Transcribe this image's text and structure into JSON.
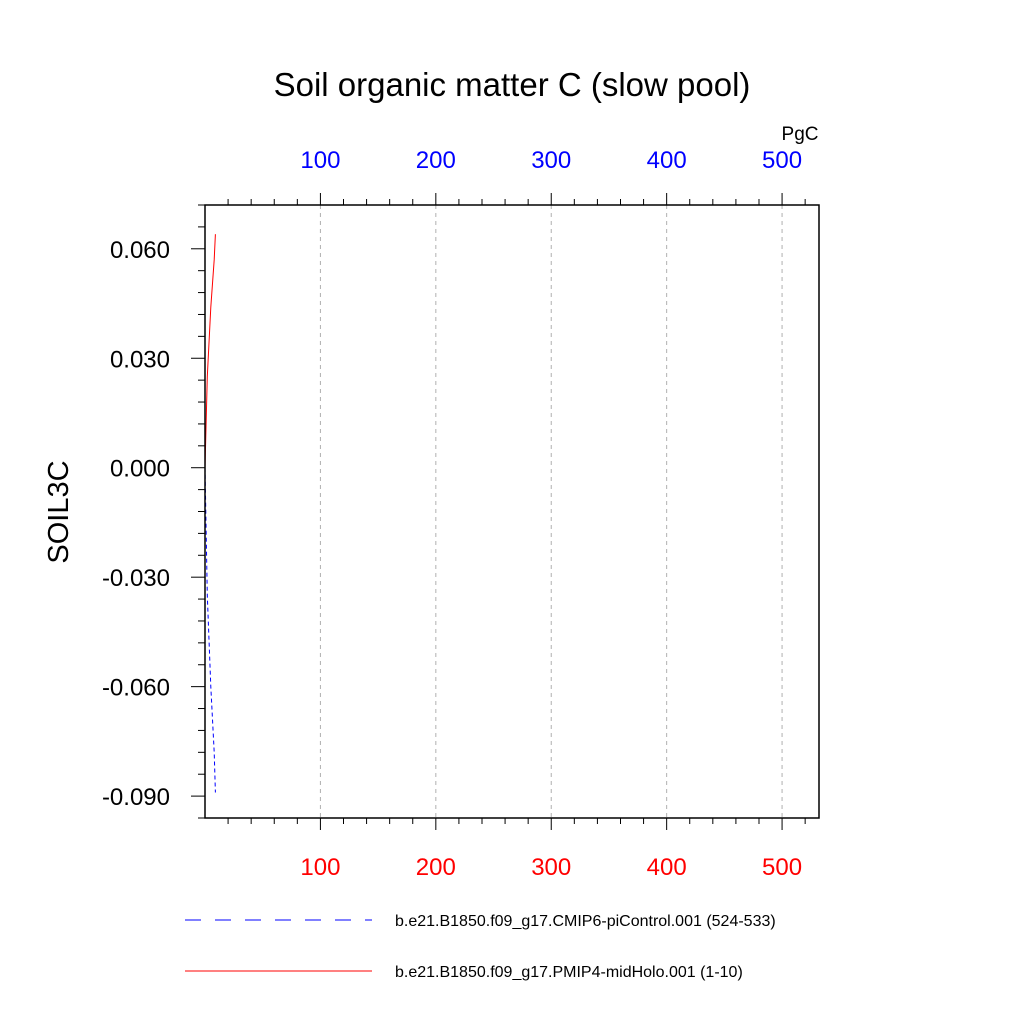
{
  "chart_data": {
    "type": "line",
    "title": "Soil organic matter C (slow pool)",
    "ylabel": "SOIL3C",
    "x_axis_units": "PgC",
    "ylim": [
      -0.096,
      0.072
    ],
    "xlim": [
      0,
      532
    ],
    "y_ticks": [
      "0.060",
      "0.030",
      "0.000",
      "-0.030",
      "-0.060",
      "-0.090"
    ],
    "y_tick_values": [
      0.06,
      0.03,
      0.0,
      -0.03,
      -0.06,
      -0.09
    ],
    "x_ticks_top": [
      "100",
      "200",
      "300",
      "400",
      "500"
    ],
    "x_ticks_bottom": [
      "100",
      "200",
      "300",
      "400",
      "500"
    ],
    "x_tick_values": [
      100,
      200,
      300,
      400,
      500
    ],
    "grid": "vertical-dashed",
    "top_axis_color": "#0000ff",
    "bottom_axis_color": "#ff0000",
    "series": [
      {
        "name": "b.e21.B1850.f09_g17.CMIP6-piControl.001 (524-533)",
        "color": "#0000ff",
        "style": "dashed",
        "points": [
          [
            0,
            0.0
          ],
          [
            2,
            -0.035
          ],
          [
            5,
            -0.06
          ],
          [
            8,
            -0.078
          ],
          [
            9,
            -0.089
          ]
        ]
      },
      {
        "name": "b.e21.B1850.f09_g17.PMIP4-midHolo.001 (1-10)",
        "color": "#ff0000",
        "style": "solid",
        "points": [
          [
            0,
            0.0
          ],
          [
            2,
            0.025
          ],
          [
            5,
            0.044
          ],
          [
            8,
            0.057
          ],
          [
            9,
            0.064
          ]
        ]
      }
    ]
  }
}
